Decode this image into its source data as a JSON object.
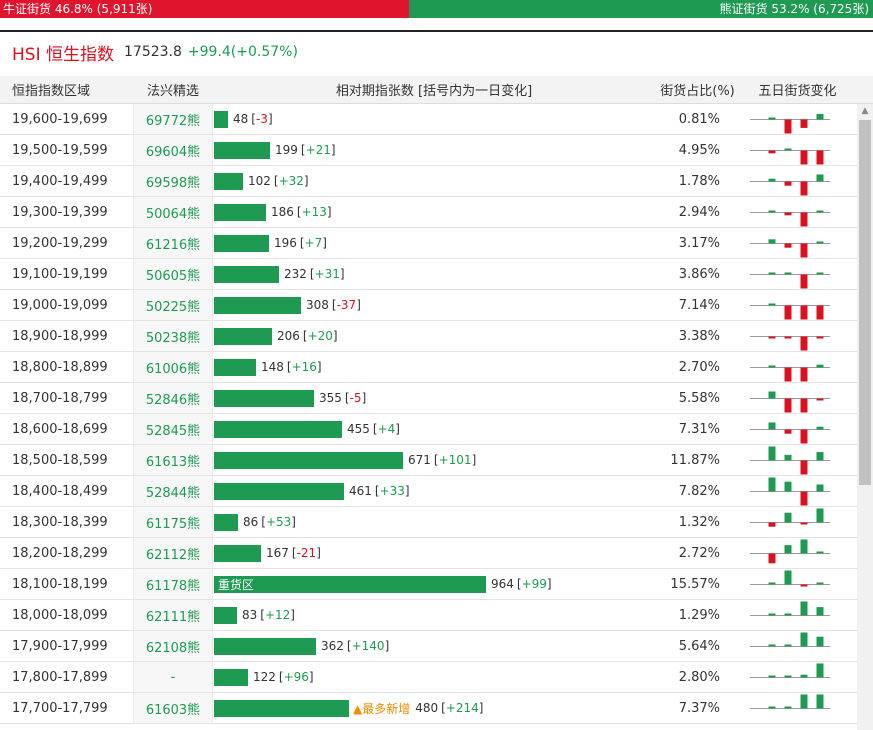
{
  "topbar": {
    "bull_label": "牛证街货 46.8% (5,911张)",
    "bear_label": "熊证街货 53.2% (6,725张)",
    "bull_share": 0.468,
    "bull_color": "#e0142d",
    "bear_color": "#1e9a52"
  },
  "index": {
    "name": "HSI 恒生指数",
    "price": "17523.8",
    "change": "+99.4(+0.57%)"
  },
  "table": {
    "headers": {
      "range": "恒指指数区域",
      "warrant": "法兴精选",
      "bar": "相对期指张数 [括号内为一日变化]",
      "pct": "街货占比(%)",
      "mini": "五日街货变化"
    },
    "max_contracts": 964,
    "rows": [
      {
        "range": "19,600-19,699",
        "warrant": "69772熊",
        "contracts": 48,
        "change": "-3",
        "pct": "0.81%",
        "label": "",
        "tag": "",
        "five_day": [
          0,
          0,
          -1,
          -0.6,
          0.4,
          -0.6
        ]
      },
      {
        "range": "19,500-19,599",
        "warrant": "69604熊",
        "contracts": 199,
        "change": "+21",
        "pct": "4.95%",
        "label": "",
        "tag": "",
        "five_day": [
          -0.2,
          -0.2,
          0,
          -1,
          -1,
          0
        ]
      },
      {
        "range": "19,400-19,499",
        "warrant": "69598熊",
        "contracts": 102,
        "change": "+32",
        "pct": "1.78%",
        "label": "",
        "tag": "",
        "five_day": [
          0,
          0.2,
          -0.3,
          -1,
          0.5,
          0
        ]
      },
      {
        "range": "19,300-19,399",
        "warrant": "50064熊",
        "contracts": 186,
        "change": "+13",
        "pct": "2.94%",
        "label": "",
        "tag": "",
        "five_day": [
          0,
          0.1,
          -0.2,
          -1,
          0.1,
          0
        ]
      },
      {
        "range": "19,200-19,299",
        "warrant": "61216熊",
        "contracts": 196,
        "change": "+7",
        "pct": "3.17%",
        "label": "",
        "tag": "",
        "five_day": [
          0,
          0.3,
          -0.3,
          -1,
          0.1,
          0
        ]
      },
      {
        "range": "19,100-19,199",
        "warrant": "50605熊",
        "contracts": 232,
        "change": "+31",
        "pct": "3.86%",
        "label": "",
        "tag": "",
        "five_day": [
          0,
          0,
          0,
          -1,
          0.1,
          0
        ]
      },
      {
        "range": "19,000-19,099",
        "warrant": "50225熊",
        "contracts": 308,
        "change": "-37",
        "pct": "7.14%",
        "label": "",
        "tag": "",
        "five_day": [
          0,
          0,
          -1,
          -1,
          -1,
          0
        ]
      },
      {
        "range": "18,900-18,999",
        "warrant": "50238熊",
        "contracts": 206,
        "change": "+20",
        "pct": "3.38%",
        "label": "",
        "tag": "",
        "five_day": [
          0,
          -0.1,
          -0.1,
          -1,
          -0.1,
          0
        ]
      },
      {
        "range": "18,800-18,899",
        "warrant": "61006熊",
        "contracts": 148,
        "change": "+16",
        "pct": "2.70%",
        "label": "",
        "tag": "",
        "five_day": [
          0,
          0,
          -1,
          -1,
          0.2,
          0
        ]
      },
      {
        "range": "18,700-18,799",
        "warrant": "52846熊",
        "contracts": 355,
        "change": "-5",
        "pct": "5.58%",
        "label": "",
        "tag": "",
        "five_day": [
          0,
          0.5,
          -1,
          -1,
          -0.1,
          0
        ]
      },
      {
        "range": "18,600-18,699",
        "warrant": "52845熊",
        "contracts": 455,
        "change": "+4",
        "pct": "7.31%",
        "label": "",
        "tag": "",
        "five_day": [
          0,
          0.5,
          -0.3,
          -1,
          0.2,
          0
        ]
      },
      {
        "range": "18,500-18,599",
        "warrant": "61613熊",
        "contracts": 671,
        "change": "+101",
        "pct": "11.87%",
        "label": "",
        "tag": "",
        "five_day": [
          0,
          1,
          0.4,
          -1,
          0.6,
          0
        ]
      },
      {
        "range": "18,400-18,499",
        "warrant": "52844熊",
        "contracts": 461,
        "change": "+33",
        "pct": "7.82%",
        "label": "",
        "tag": "",
        "five_day": [
          0,
          1,
          0.7,
          -1,
          0.5,
          0
        ]
      },
      {
        "range": "18,300-18,399",
        "warrant": "61175熊",
        "contracts": 86,
        "change": "+53",
        "pct": "1.32%",
        "label": "",
        "tag": "",
        "five_day": [
          0,
          -0.3,
          0.7,
          -0.1,
          1,
          0
        ]
      },
      {
        "range": "18,200-18,299",
        "warrant": "62112熊",
        "contracts": 167,
        "change": "-21",
        "pct": "2.72%",
        "label": "",
        "tag": "",
        "five_day": [
          0,
          -0.7,
          0.6,
          1,
          0.1,
          0
        ]
      },
      {
        "range": "18,100-18,199",
        "warrant": "61178熊",
        "contracts": 964,
        "change": "+99",
        "pct": "15.57%",
        "label": "重货区",
        "tag": "",
        "five_day": [
          0,
          0,
          1,
          -0.1,
          0.1,
          0
        ]
      },
      {
        "range": "18,000-18,099",
        "warrant": "62111熊",
        "contracts": 83,
        "change": "+12",
        "pct": "1.29%",
        "label": "",
        "tag": "",
        "five_day": [
          0,
          0,
          0,
          1,
          0.6,
          0
        ]
      },
      {
        "range": "17,900-17,999",
        "warrant": "62108熊",
        "contracts": 362,
        "change": "+140",
        "pct": "5.64%",
        "label": "",
        "tag": "",
        "five_day": [
          0,
          0,
          0,
          1,
          0.7,
          0
        ]
      },
      {
        "range": "17,800-17,899",
        "warrant": "-",
        "contracts": 122,
        "change": "+96",
        "pct": "2.80%",
        "label": "",
        "tag": "",
        "five_day": [
          0,
          0,
          0,
          0.2,
          1,
          0
        ]
      },
      {
        "range": "17,700-17,799",
        "warrant": "61603熊",
        "contracts": 480,
        "change": "+214",
        "pct": "7.37%",
        "label": "",
        "tag": "▲最多新增",
        "five_day": [
          0,
          0,
          0,
          1,
          1,
          0
        ]
      }
    ]
  },
  "colors": {
    "up": "#1e9a52",
    "down": "#d8121e",
    "tag": "#f08c00"
  }
}
